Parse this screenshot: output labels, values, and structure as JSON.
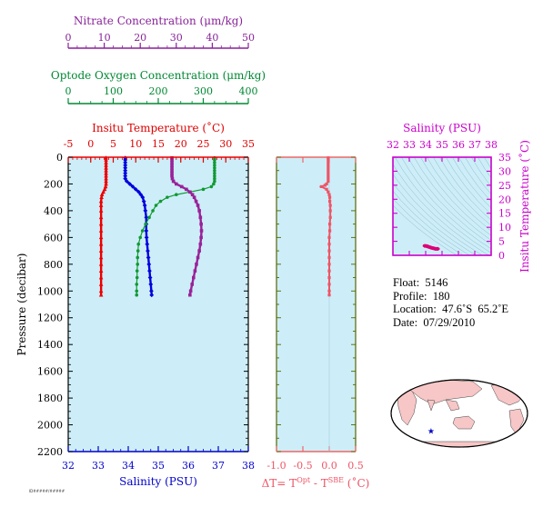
{
  "chart_data": [
    {
      "type": "scatter",
      "title": "",
      "xlabels": {
        "temperature": "Insitu Temperature (˚C)",
        "salinity": "Salinity (PSU)",
        "oxygen": "Optode Oxygen Concentration (μm/kg)",
        "nitrate": "Nitrate Concentration (μm/kg)"
      },
      "ylabel": "Pressure (decibar)",
      "ylim": [
        2200,
        0
      ],
      "yticks": [
        "0",
        "200",
        "400",
        "600",
        "800",
        "1000",
        "1200",
        "1400",
        "1600",
        "1800",
        "2000",
        "2200"
      ],
      "axes": {
        "temperature": {
          "xlim": [
            -5,
            35
          ],
          "ticks": [
            "-5",
            "0",
            "5",
            "10",
            "15",
            "20",
            "25",
            "30",
            "35"
          ],
          "color": "#dd0000"
        },
        "salinity": {
          "xlim": [
            32,
            38
          ],
          "ticks": [
            "32",
            "33",
            "34",
            "35",
            "36",
            "37",
            "38"
          ],
          "color": "#0000cc"
        },
        "oxygen": {
          "xlim": [
            0,
            400
          ],
          "ticks": [
            "0",
            "100",
            "200",
            "300",
            "400"
          ],
          "color": "#008833"
        },
        "nitrate": {
          "xlim": [
            0,
            50
          ],
          "ticks": [
            "0",
            "10",
            "20",
            "30",
            "40",
            "50"
          ],
          "color": "#882299"
        }
      },
      "series": [
        {
          "name": "temperature",
          "color": "#ee0000",
          "points": [
            [
              3.4,
              5
            ],
            [
              3.4,
              20
            ],
            [
              3.4,
              40
            ],
            [
              3.4,
              60
            ],
            [
              3.4,
              80
            ],
            [
              3.4,
              100
            ],
            [
              3.4,
              120
            ],
            [
              3.4,
              140
            ],
            [
              3.4,
              160
            ],
            [
              3.4,
              180
            ],
            [
              3.4,
              200
            ],
            [
              3.3,
              220
            ],
            [
              3.1,
              240
            ],
            [
              2.8,
              260
            ],
            [
              2.5,
              280
            ],
            [
              2.4,
              300
            ],
            [
              2.3,
              330
            ],
            [
              2.3,
              360
            ],
            [
              2.3,
              400
            ],
            [
              2.3,
              450
            ],
            [
              2.3,
              500
            ],
            [
              2.3,
              550
            ],
            [
              2.3,
              600
            ],
            [
              2.3,
              650
            ],
            [
              2.3,
              700
            ],
            [
              2.3,
              750
            ],
            [
              2.3,
              800
            ],
            [
              2.3,
              850
            ],
            [
              2.3,
              900
            ],
            [
              2.3,
              950
            ],
            [
              2.3,
              1000
            ],
            [
              2.3,
              1030
            ]
          ]
        },
        {
          "name": "salinity",
          "color": "#0000dd",
          "points": [
            [
              33.9,
              5
            ],
            [
              33.9,
              20
            ],
            [
              33.9,
              40
            ],
            [
              33.9,
              60
            ],
            [
              33.9,
              80
            ],
            [
              33.9,
              100
            ],
            [
              33.9,
              120
            ],
            [
              33.9,
              140
            ],
            [
              33.9,
              160
            ],
            [
              33.95,
              180
            ],
            [
              34.05,
              200
            ],
            [
              34.15,
              220
            ],
            [
              34.25,
              240
            ],
            [
              34.35,
              260
            ],
            [
              34.42,
              280
            ],
            [
              34.48,
              300
            ],
            [
              34.52,
              330
            ],
            [
              34.55,
              360
            ],
            [
              34.57,
              400
            ],
            [
              34.6,
              450
            ],
            [
              34.6,
              500
            ],
            [
              34.6,
              550
            ],
            [
              34.61,
              600
            ],
            [
              34.63,
              650
            ],
            [
              34.65,
              700
            ],
            [
              34.67,
              750
            ],
            [
              34.69,
              800
            ],
            [
              34.71,
              850
            ],
            [
              34.73,
              900
            ],
            [
              34.75,
              950
            ],
            [
              34.77,
              1000
            ],
            [
              34.78,
              1030
            ]
          ]
        },
        {
          "name": "oxygen",
          "color": "#119933",
          "points": [
            [
              325,
              5
            ],
            [
              325,
              20
            ],
            [
              325,
              40
            ],
            [
              325,
              60
            ],
            [
              325,
              80
            ],
            [
              325,
              100
            ],
            [
              325,
              120
            ],
            [
              325,
              140
            ],
            [
              325,
              160
            ],
            [
              325,
              180
            ],
            [
              323,
              200
            ],
            [
              318,
              220
            ],
            [
              300,
              240
            ],
            [
              270,
              260
            ],
            [
              240,
              280
            ],
            [
              220,
              300
            ],
            [
              205,
              330
            ],
            [
              195,
              360
            ],
            [
              188,
              400
            ],
            [
              180,
              450
            ],
            [
              172,
              500
            ],
            [
              165,
              550
            ],
            [
              160,
              600
            ],
            [
              156,
              650
            ],
            [
              155,
              700
            ],
            [
              154,
              750
            ],
            [
              154,
              800
            ],
            [
              153,
              850
            ],
            [
              153,
              900
            ],
            [
              152,
              950
            ],
            [
              152,
              1000
            ],
            [
              152,
              1030
            ]
          ]
        },
        {
          "name": "nitrate",
          "color": "#992299",
          "points": [
            [
              28.8,
              5
            ],
            [
              28.8,
              20
            ],
            [
              28.8,
              40
            ],
            [
              28.8,
              60
            ],
            [
              28.8,
              80
            ],
            [
              28.8,
              100
            ],
            [
              28.8,
              120
            ],
            [
              28.8,
              140
            ],
            [
              28.9,
              160
            ],
            [
              29.2,
              180
            ],
            [
              30.0,
              200
            ],
            [
              31.5,
              220
            ],
            [
              32.8,
              240
            ],
            [
              33.8,
              260
            ],
            [
              34.5,
              280
            ],
            [
              35.0,
              300
            ],
            [
              35.5,
              330
            ],
            [
              36.0,
              360
            ],
            [
              36.4,
              400
            ],
            [
              36.7,
              450
            ],
            [
              36.9,
              500
            ],
            [
              37.0,
              550
            ],
            [
              36.9,
              600
            ],
            [
              36.7,
              650
            ],
            [
              36.4,
              700
            ],
            [
              36.0,
              750
            ],
            [
              35.6,
              800
            ],
            [
              35.2,
              850
            ],
            [
              34.8,
              900
            ],
            [
              34.4,
              950
            ],
            [
              34.0,
              1000
            ],
            [
              33.8,
              1030
            ]
          ]
        }
      ]
    },
    {
      "type": "scatter",
      "title": "",
      "xlabel": "ΔT= T",
      "xlabel_sup1": "Opt",
      "xlabel_mid": " - T",
      "xlabel_sup2": "SBE",
      "xlabel_tail": " (˚C)",
      "xlim": [
        -1.0,
        0.5
      ],
      "xticks": [
        "-1.0",
        "-0.5",
        "0.0",
        "0.5"
      ],
      "ylim": [
        2200,
        0
      ],
      "series": [
        {
          "color": "#ee5566",
          "points": [
            [
              -0.02,
              5
            ],
            [
              -0.02,
              20
            ],
            [
              -0.02,
              40
            ],
            [
              -0.02,
              60
            ],
            [
              -0.02,
              80
            ],
            [
              -0.02,
              100
            ],
            [
              -0.02,
              120
            ],
            [
              -0.02,
              140
            ],
            [
              -0.02,
              160
            ],
            [
              -0.02,
              180
            ],
            [
              -0.05,
              200
            ],
            [
              -0.08,
              210
            ],
            [
              -0.15,
              220
            ],
            [
              -0.05,
              240
            ],
            [
              -0.02,
              260
            ],
            [
              0.0,
              280
            ],
            [
              0.01,
              300
            ],
            [
              0.01,
              330
            ],
            [
              0.02,
              360
            ],
            [
              0.02,
              400
            ],
            [
              0.02,
              450
            ],
            [
              0.01,
              500
            ],
            [
              0.01,
              550
            ],
            [
              0.0,
              600
            ],
            [
              0.0,
              650
            ],
            [
              0.0,
              700
            ],
            [
              0.0,
              750
            ],
            [
              0.0,
              800
            ],
            [
              0.0,
              850
            ],
            [
              0.0,
              900
            ],
            [
              0.0,
              950
            ],
            [
              0.0,
              1000
            ],
            [
              0.0,
              1030
            ]
          ]
        }
      ]
    },
    {
      "type": "scatter",
      "title": "",
      "xlabel": "Salinity (PSU)",
      "ylabel": "Insitu Temperature (˚C)",
      "xlim": [
        32,
        38
      ],
      "ylim": [
        0,
        35
      ],
      "xticks": [
        "32",
        "33",
        "34",
        "35",
        "36",
        "37",
        "38"
      ],
      "yticks": [
        "0",
        "5",
        "10",
        "15",
        "20",
        "25",
        "30",
        "35"
      ],
      "series": [
        {
          "color": "#dd0077",
          "points": [
            [
              33.9,
              3.4
            ],
            [
              34.05,
              3.3
            ],
            [
              34.2,
              3.0
            ],
            [
              34.4,
              2.6
            ],
            [
              34.55,
              2.4
            ],
            [
              34.6,
              2.3
            ],
            [
              34.7,
              2.3
            ],
            [
              34.78,
              2.3
            ]
          ]
        }
      ]
    }
  ],
  "info": {
    "float": "Float:  5146",
    "profile": "Profile:  180",
    "location": "Location:  47.6˚S  65.2˚E",
    "date": "Date:  07/29/2010"
  },
  "colors": {
    "plot_bg": "#cdeef8",
    "land": "#f7c6c6",
    "ocean": "#ffffff",
    "ts_magenta": "#cc00cc",
    "marker": "#0000cc"
  },
  "footer": "ID#####/#####"
}
